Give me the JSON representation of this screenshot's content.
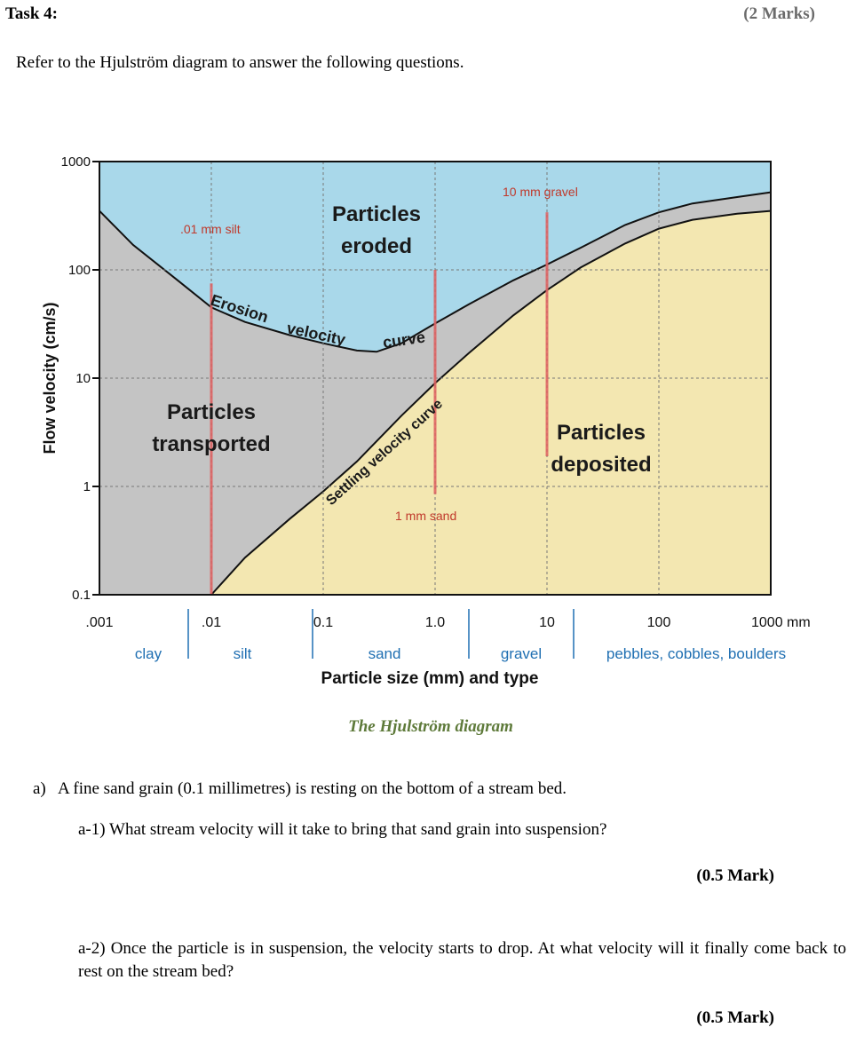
{
  "task": {
    "title": "Task 4:",
    "marks": "(2 Marks)"
  },
  "instruction": "Refer to the Hjulström diagram to answer the following questions.",
  "figure": {
    "caption": "The Hjulström diagram",
    "colors": {
      "eroded": "#a9d8ea",
      "transported": "#c4c4c4",
      "deposited": "#f3e7b1",
      "marker": "#e06060",
      "label_red": "#c0392b",
      "type_label": "#1f6fb2"
    }
  },
  "chart_data": {
    "type": "area",
    "xlabel": "Particle size (mm) and type",
    "ylabel": "Flow velocity (cm/s)",
    "x_scale": "log",
    "y_scale": "log",
    "xlim": [
      0.001,
      1000
    ],
    "ylim": [
      0.1,
      1000
    ],
    "x_ticks": [
      ".001",
      ".01",
      "0.1",
      "1.0",
      "10",
      "100",
      "1000 mm"
    ],
    "y_ticks": [
      "1000",
      "100",
      "10",
      "1",
      "0.1"
    ],
    "particle_types": [
      "clay",
      "silt",
      "sand",
      "gravel",
      "pebbles, cobbles, boulders"
    ],
    "regions": [
      "Particles eroded",
      "Particles transported",
      "Particles deposited"
    ],
    "region_labels": {
      "eroded": [
        "Particles",
        "eroded"
      ],
      "transported": [
        "Particles",
        "transported"
      ],
      "deposited": [
        "Particles",
        "deposited"
      ]
    },
    "curve_labels": {
      "erosion": [
        "Erosion",
        "velocity",
        "curve"
      ],
      "settling": "Settling velocity curve"
    },
    "markers": [
      {
        "label": ".01 mm silt",
        "size": 0.01
      },
      {
        "label": "1 mm sand",
        "size": 1
      },
      {
        "label": "10 mm gravel",
        "size": 10
      }
    ],
    "erosion_curve": {
      "x": [
        0.001,
        0.002,
        0.005,
        0.01,
        0.02,
        0.05,
        0.1,
        0.2,
        0.3,
        0.5,
        1,
        2,
        5,
        10,
        20,
        50,
        100,
        200,
        500,
        1000
      ],
      "y": [
        350,
        170,
        80,
        45,
        33,
        25,
        21,
        18,
        17.5,
        21,
        32,
        48,
        80,
        112,
        160,
        260,
        340,
        410,
        470,
        520
      ]
    },
    "settling_curve": {
      "x": [
        0.01,
        0.02,
        0.05,
        0.1,
        0.2,
        0.5,
        1,
        2,
        5,
        10,
        20,
        50,
        100,
        200,
        500,
        1000
      ],
      "y": [
        0.1,
        0.22,
        0.5,
        0.9,
        1.7,
        4.5,
        9,
        17,
        38,
        65,
        105,
        175,
        240,
        290,
        330,
        350
      ]
    }
  },
  "questions": {
    "a": {
      "label": "a)",
      "text": "A fine sand grain (0.1 millimetres) is resting on the bottom of a stream bed."
    },
    "a1": {
      "label": "a-1)",
      "text": "What stream velocity will it take to bring that sand grain into suspension?",
      "marks": "(0.5 Mark)"
    },
    "a2": {
      "label": "a-2)",
      "text": "Once the particle is in suspension, the velocity starts to drop. At what velocity will it finally come back to rest on the stream bed?",
      "marks": "(0.5 Mark)"
    }
  }
}
